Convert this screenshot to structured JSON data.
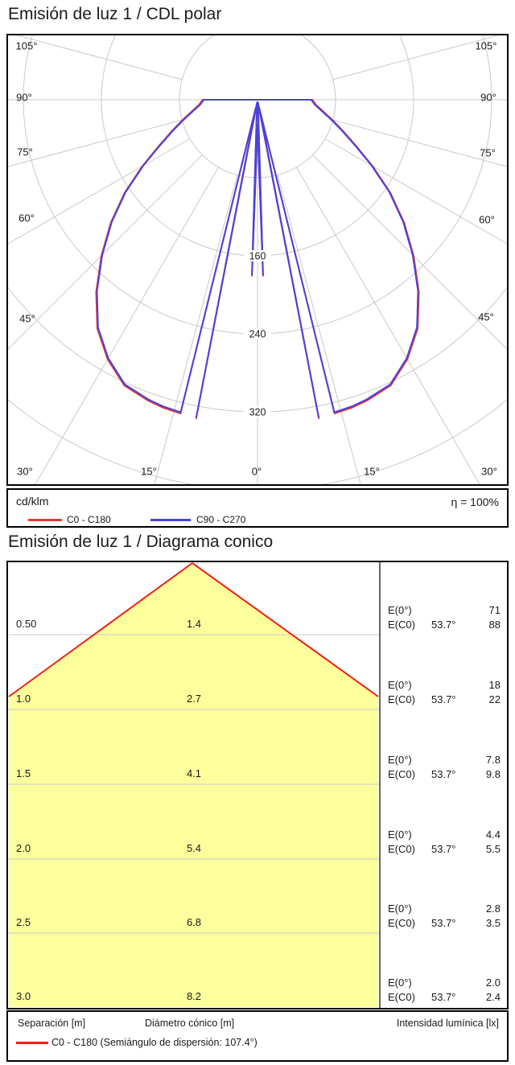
{
  "polar": {
    "title": "Emisión de luz 1 / CDL polar",
    "unit_label": "cd/klm",
    "efficiency_label": "η = 100%",
    "legend": [
      {
        "label": "C0 - C180",
        "color": "#e43830"
      },
      {
        "label": "C90 - C270",
        "color": "#4a43dd"
      }
    ],
    "angle_labels_left": [
      "105°",
      "90°",
      "75°",
      "60°",
      "45°"
    ],
    "angle_labels_bottom": [
      "30°",
      "15°",
      "0°",
      "15°",
      "30°"
    ],
    "angle_labels_right": [
      "105°",
      "90°",
      "75°",
      "60°",
      "45°"
    ],
    "ring_labels": [
      "160",
      "240",
      "320"
    ]
  },
  "cone": {
    "title": "Emisión de luz 1 / Diagrama conico",
    "labels": {
      "e0": "E(0°)",
      "ec0": "E(C0)",
      "angle": "53.7°"
    },
    "rows": [
      {
        "separation": "0.50",
        "diameter": "1.4",
        "e0": "71",
        "ec0": "88"
      },
      {
        "separation": "1.0",
        "diameter": "2.7",
        "e0": "18",
        "ec0": "22"
      },
      {
        "separation": "1.5",
        "diameter": "4.1",
        "e0": "7.8",
        "ec0": "9.8"
      },
      {
        "separation": "2.0",
        "diameter": "5.4",
        "e0": "4.4",
        "ec0": "5.5"
      },
      {
        "separation": "2.5",
        "diameter": "6.8",
        "e0": "2.8",
        "ec0": "3.5"
      },
      {
        "separation": "3.0",
        "diameter": "8.2",
        "e0": "2.0",
        "ec0": "2.4"
      }
    ],
    "footer": {
      "separation_header": "Separación [m]",
      "diameter_header": "Diámetro cónico [m]",
      "intensity_header": "Intensidad lumínica [lx]",
      "legend": "C0 - C180 (Semiángulo de dispersión: 107.4°)"
    },
    "colors": {
      "fill": "#fdff9c",
      "edge": "#f21d12",
      "grid": "#c9c9c9"
    }
  },
  "chart_data": [
    {
      "type": "polar",
      "title": "Emisión de luz 1 / CDL polar",
      "unit": "cd/klm",
      "efficiency_percent": 100,
      "angle_ticks_deg": [
        0,
        15,
        30,
        45,
        60,
        75,
        90,
        105
      ],
      "grid_rings": [
        80,
        160,
        240,
        320,
        400,
        480
      ],
      "radial_tick_values": [
        160,
        240,
        320
      ],
      "radial_tick_labels": [
        "160",
        "240",
        "320"
      ],
      "gamma_symmetric": true,
      "profile_gamma_value": [
        [
          0,
          25
        ],
        [
          1.8,
          180
        ],
        [
          3,
          15
        ],
        [
          8.3,
          2
        ],
        [
          10.9,
          332
        ],
        [
          12,
          8
        ],
        [
          13.8,
          330
        ],
        [
          17,
          329
        ],
        [
          20,
          327
        ],
        [
          25,
          322
        ],
        [
          30,
          306
        ],
        [
          35,
          285
        ],
        [
          40,
          256
        ],
        [
          45,
          225
        ],
        [
          50,
          195
        ],
        [
          55,
          165
        ],
        [
          60,
          135
        ],
        [
          65,
          110
        ],
        [
          70,
          92
        ],
        [
          75,
          78
        ],
        [
          80,
          67
        ],
        [
          85,
          59
        ],
        [
          90,
          55
        ],
        [
          90.8,
          0
        ],
        [
          105,
          0
        ]
      ],
      "series": [
        {
          "name": "C0 - C180",
          "color": "#e43830"
        },
        {
          "name": "C90 - C270",
          "color": "#4a43dd"
        }
      ],
      "grid_color": "#c9c9c9"
    },
    {
      "type": "table",
      "title": "Emisión de luz 1 / Diagrama conico",
      "columns": [
        "Separación [m]",
        "Diámetro cónico [m]",
        "E(0°) [lx]",
        "E(C0) 53.7° [lx]"
      ],
      "rows": [
        [
          0.5,
          1.4,
          71,
          88
        ],
        [
          1.0,
          2.7,
          18,
          22
        ],
        [
          1.5,
          4.1,
          7.8,
          9.8
        ],
        [
          2.0,
          5.4,
          4.4,
          5.5
        ],
        [
          2.5,
          6.8,
          2.8,
          3.5
        ],
        [
          3.0,
          8.2,
          2.0,
          2.4
        ]
      ],
      "beam_half_angle_deg": 53.7,
      "dispersion_semi_angle_deg": 107.4,
      "legend": "C0 - C180 (Semiángulo de dispersión: 107.4°)"
    }
  ]
}
